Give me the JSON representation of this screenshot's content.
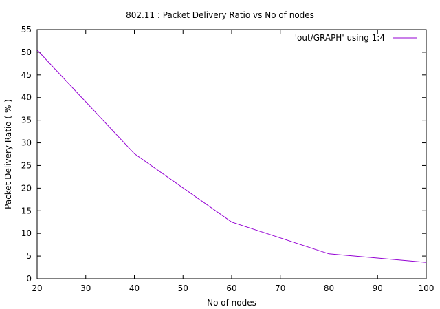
{
  "chart_data": {
    "type": "line",
    "title": "802.11 : Packet Delivery Ratio vs No of nodes",
    "xlabel": "No of nodes",
    "ylabel": "Packet Delivery Ratio ( % )",
    "xlim": [
      20,
      100
    ],
    "ylim": [
      0,
      55
    ],
    "x_ticks": [
      20,
      30,
      40,
      50,
      60,
      70,
      80,
      90,
      100
    ],
    "y_ticks": [
      0,
      5,
      10,
      15,
      20,
      25,
      30,
      35,
      40,
      45,
      50,
      55
    ],
    "grid": false,
    "legend_position": "top-right",
    "series": [
      {
        "name": "'out/GRAPH' using 1:4",
        "color": "#9400d3",
        "x": [
          20,
          40,
          60,
          80,
          100
        ],
        "y": [
          50.5,
          27.6,
          12.5,
          5.5,
          3.6
        ]
      }
    ]
  }
}
